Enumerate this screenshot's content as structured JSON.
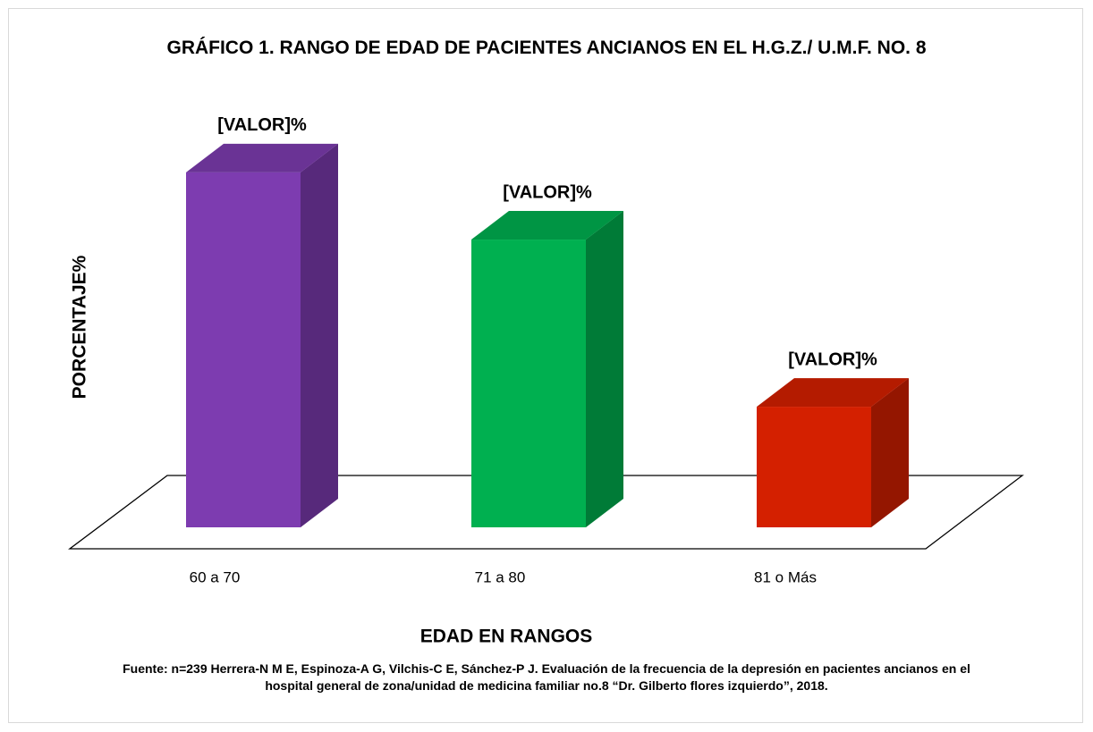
{
  "chart_data": {
    "type": "bar3d",
    "title": "GRÁFICO 1. RANGO DE EDAD DE PACIENTES ANCIANOS EN EL H.G.Z./ U.M.F. NO. 8",
    "x_label": "EDAD EN RANGOS",
    "y_label": "PORCENTAJE%",
    "categories": [
      "60 a 70",
      "71 a 80",
      "81 o Más"
    ],
    "values": [
      46.5,
      37.7,
      15.8
    ],
    "value_labels": [
      "[VALOR]%",
      "[VALOR]%",
      "[VALOR]%"
    ],
    "colors": [
      "#7d3cb0",
      "#00b050",
      "#d42000"
    ],
    "source": "Fuente: n=239 Herrera-N M E, Espinoza-A G, Vilchis-C E, Sánchez-P J. Evaluación de la frecuencia de la depresión en pacientes ancianos en el hospital general de zona/unidad de medicina familiar no.8 “Dr. Gilberto flores izquierdo”, 2018."
  }
}
